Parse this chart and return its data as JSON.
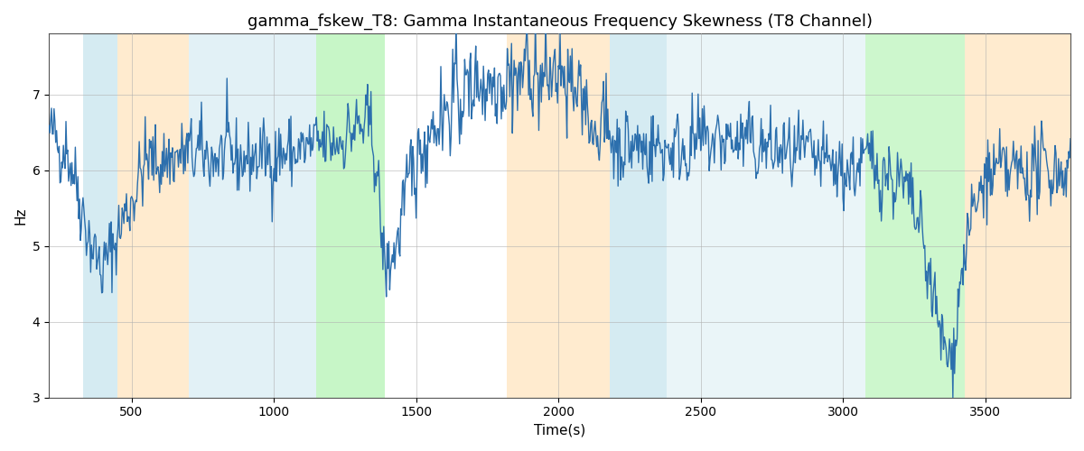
{
  "title": "gamma_fskew_T8: Gamma Instantaneous Frequency Skewness (T8 Channel)",
  "xlabel": "Time(s)",
  "ylabel": "Hz",
  "xlim": [
    210,
    3800
  ],
  "ylim": [
    3,
    7.8
  ],
  "yticks": [
    3,
    4,
    5,
    6,
    7
  ],
  "xticks": [
    500,
    1000,
    1500,
    2000,
    2500,
    3000,
    3500
  ],
  "line_color": "#2c6fad",
  "line_width": 1.0,
  "bg_color": "#ffffff",
  "grid_color": "#b0b0b0",
  "title_fontsize": 13,
  "label_fontsize": 11,
  "bands": [
    {
      "xmin": 330,
      "xmax": 450,
      "color": "#add8e6",
      "alpha": 0.5
    },
    {
      "xmin": 450,
      "xmax": 700,
      "color": "#ffd9a0",
      "alpha": 0.5
    },
    {
      "xmin": 700,
      "xmax": 1150,
      "color": "#add8e6",
      "alpha": 0.35
    },
    {
      "xmin": 1150,
      "xmax": 1390,
      "color": "#90ee90",
      "alpha": 0.5
    },
    {
      "xmin": 1820,
      "xmax": 2180,
      "color": "#ffd9a0",
      "alpha": 0.5
    },
    {
      "xmin": 2180,
      "xmax": 2380,
      "color": "#add8e6",
      "alpha": 0.5
    },
    {
      "xmin": 2380,
      "xmax": 2700,
      "color": "#add8e6",
      "alpha": 0.25
    },
    {
      "xmin": 2700,
      "xmax": 3080,
      "color": "#add8e6",
      "alpha": 0.25
    },
    {
      "xmin": 3080,
      "xmax": 3430,
      "color": "#90ee90",
      "alpha": 0.45
    },
    {
      "xmin": 3430,
      "xmax": 3800,
      "color": "#ffd9a0",
      "alpha": 0.5
    }
  ],
  "seed": 42
}
